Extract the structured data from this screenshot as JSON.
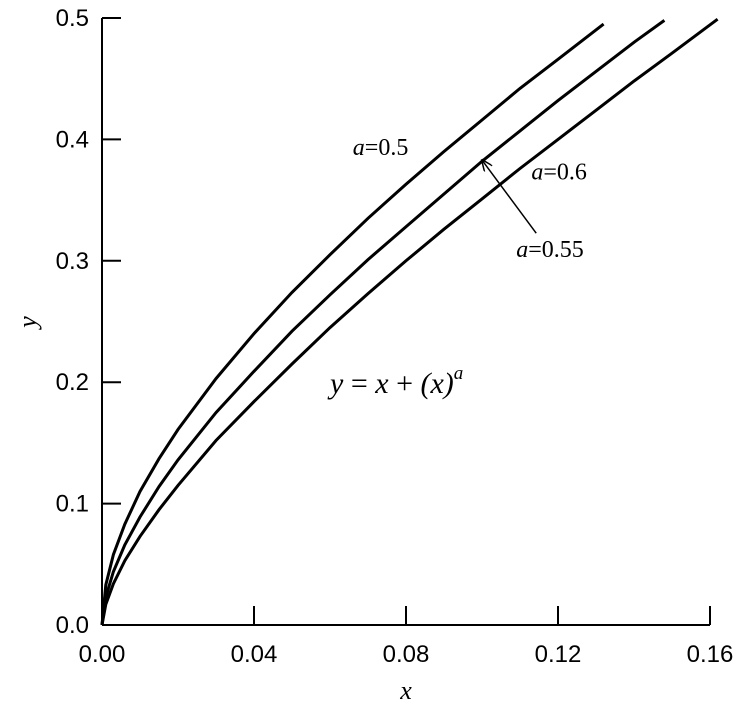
{
  "chart_data": {
    "type": "line",
    "title": "",
    "xlabel": "x",
    "ylabel": "y",
    "xlim": [
      0,
      0.16
    ],
    "ylim": [
      0,
      0.5
    ],
    "x_ticks": [
      0,
      0.04,
      0.08,
      0.12,
      0.16
    ],
    "x_tick_labels": [
      "0.00",
      "0.04",
      "0.08",
      "0.12",
      "0.16"
    ],
    "y_ticks": [
      0,
      0.1,
      0.2,
      0.3,
      0.4,
      0.5
    ],
    "y_tick_labels": [
      "0.0",
      "0.1",
      "0.2",
      "0.3",
      "0.4",
      "0.5"
    ],
    "grid": false,
    "legend": "none",
    "formula": {
      "lhs": "y",
      "eq": " = ",
      "x": "x",
      "plus": " + ",
      "paren": "(x)",
      "sup": "a"
    },
    "series": [
      {
        "name": "a=0.5",
        "exponent": 0.5,
        "x": [
          0,
          0.001,
          0.003,
          0.006,
          0.01,
          0.015,
          0.02,
          0.03,
          0.04,
          0.05,
          0.06,
          0.07,
          0.08,
          0.09,
          0.1,
          0.11,
          0.12,
          0.132
        ],
        "y": [
          0,
          0.033,
          0.058,
          0.083,
          0.11,
          0.137,
          0.161,
          0.203,
          0.24,
          0.274,
          0.305,
          0.335,
          0.363,
          0.39,
          0.416,
          0.442,
          0.466,
          0.495
        ]
      },
      {
        "name": "a=0.55",
        "exponent": 0.55,
        "x": [
          0,
          0.001,
          0.003,
          0.006,
          0.01,
          0.015,
          0.02,
          0.03,
          0.04,
          0.05,
          0.06,
          0.07,
          0.08,
          0.09,
          0.1,
          0.11,
          0.12,
          0.13,
          0.14,
          0.148
        ],
        "y": [
          0,
          0.023,
          0.044,
          0.066,
          0.089,
          0.114,
          0.136,
          0.175,
          0.209,
          0.242,
          0.272,
          0.301,
          0.328,
          0.355,
          0.382,
          0.407,
          0.432,
          0.456,
          0.48,
          0.498
        ]
      },
      {
        "name": "a=0.6",
        "exponent": 0.6,
        "x": [
          0,
          0.001,
          0.003,
          0.006,
          0.01,
          0.015,
          0.02,
          0.03,
          0.04,
          0.05,
          0.06,
          0.07,
          0.08,
          0.09,
          0.1,
          0.11,
          0.12,
          0.13,
          0.14,
          0.15,
          0.162
        ],
        "y": [
          0,
          0.017,
          0.034,
          0.053,
          0.073,
          0.095,
          0.115,
          0.152,
          0.184,
          0.215,
          0.245,
          0.273,
          0.3,
          0.326,
          0.351,
          0.376,
          0.4,
          0.424,
          0.448,
          0.471,
          0.499
        ]
      }
    ],
    "annotations": [
      {
        "var": "a",
        "text": "=0.5",
        "x": 0.066,
        "y": 0.387
      },
      {
        "var": "a",
        "text": "=0.6",
        "x": 0.113,
        "y": 0.367
      },
      {
        "var": "a",
        "text": "=0.55",
        "x": 0.109,
        "y": 0.303,
        "arrow_to": {
          "x": 0.1,
          "y": 0.383
        }
      }
    ]
  }
}
